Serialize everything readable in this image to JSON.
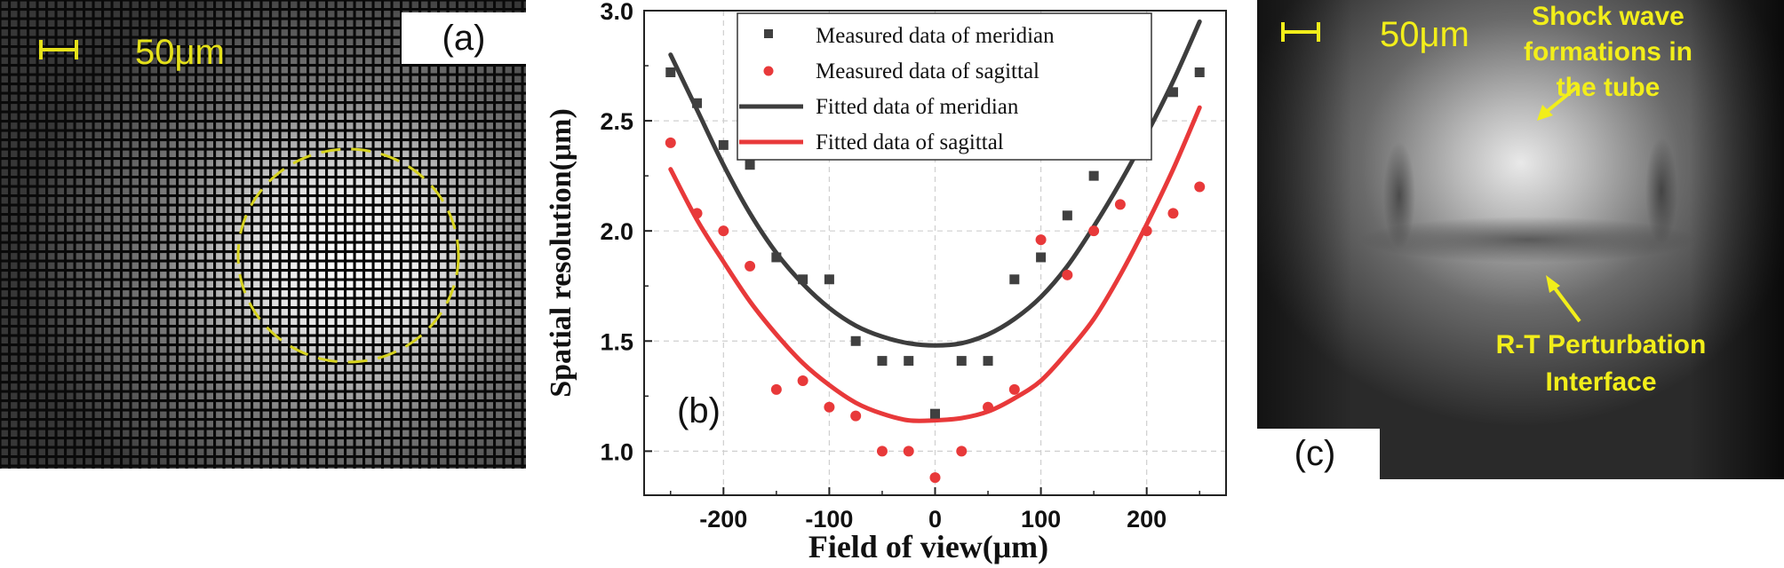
{
  "panel_a": {
    "label": "(a)",
    "scale_text": "50μm",
    "accent": "#e6e21a"
  },
  "panel_c": {
    "label": "(c)",
    "scale_text": "50μm",
    "annotation_top": [
      "Shock wave",
      "formations in",
      "the tube"
    ],
    "annotation_bottom": [
      "R-T Perturbation",
      "Interface"
    ],
    "accent": "#f2ee1a"
  },
  "chart_data": {
    "type": "scatter",
    "panel_label": "(b)",
    "xlabel": "Field of view(μm)",
    "ylabel": "Spatial resolution(μm)",
    "xlim": [
      -275,
      275
    ],
    "ylim": [
      0.8,
      3.0
    ],
    "xticks": [
      -200,
      -100,
      0,
      100,
      200
    ],
    "yticks": [
      1.0,
      1.5,
      2.0,
      2.5,
      3.0
    ],
    "xtick_labels": [
      "-200",
      "-100",
      "0",
      "100",
      "200"
    ],
    "ytick_labels": [
      "1.0",
      "1.5",
      "2.0",
      "2.5",
      "3.0"
    ],
    "grid": true,
    "legend_position": "top",
    "series": [
      {
        "name": "Measured data of meridian",
        "kind": "points",
        "marker": "square",
        "color": "#404040",
        "x": [
          -250,
          -225,
          -200,
          -175,
          -150,
          -125,
          -100,
          -75,
          -50,
          -25,
          0,
          25,
          50,
          75,
          100,
          125,
          150,
          175,
          200,
          225,
          250
        ],
        "y": [
          2.72,
          2.58,
          2.39,
          2.3,
          1.88,
          1.78,
          1.78,
          1.5,
          1.41,
          1.41,
          1.17,
          1.41,
          1.41,
          1.78,
          1.88,
          2.07,
          2.25,
          2.35,
          2.39,
          2.63,
          2.72
        ]
      },
      {
        "name": "Measured data of sagittal",
        "kind": "points",
        "marker": "circle",
        "color": "#e8393a",
        "x": [
          -250,
          -225,
          -200,
          -175,
          -150,
          -125,
          -100,
          -75,
          -50,
          -25,
          0,
          25,
          50,
          75,
          100,
          125,
          150,
          175,
          200,
          225,
          250
        ],
        "y": [
          2.4,
          2.08,
          2.0,
          1.84,
          1.28,
          1.32,
          1.2,
          1.16,
          1.0,
          1.0,
          0.88,
          1.0,
          1.2,
          1.28,
          1.96,
          1.8,
          2.0,
          2.12,
          2.0,
          2.08,
          2.2
        ]
      },
      {
        "name": "Fitted data of meridian",
        "kind": "line",
        "color": "#3d3d3d",
        "x": [
          -250,
          -225,
          -200,
          -175,
          -150,
          -125,
          -100,
          -75,
          -50,
          -25,
          0,
          25,
          50,
          75,
          100,
          125,
          150,
          175,
          200,
          225,
          250
        ],
        "y": [
          2.8,
          2.55,
          2.3,
          2.08,
          1.9,
          1.76,
          1.65,
          1.57,
          1.52,
          1.49,
          1.48,
          1.49,
          1.53,
          1.6,
          1.7,
          1.84,
          2.02,
          2.22,
          2.44,
          2.68,
          2.95
        ]
      },
      {
        "name": "Fitted data of sagittal",
        "kind": "line",
        "color": "#e8393a",
        "x": [
          -250,
          -225,
          -200,
          -175,
          -150,
          -125,
          -100,
          -75,
          -50,
          -25,
          0,
          25,
          50,
          75,
          100,
          125,
          150,
          175,
          200,
          225,
          250
        ],
        "y": [
          2.28,
          2.05,
          1.86,
          1.68,
          1.53,
          1.4,
          1.3,
          1.22,
          1.17,
          1.14,
          1.14,
          1.15,
          1.18,
          1.24,
          1.32,
          1.45,
          1.6,
          1.8,
          2.03,
          2.28,
          2.56
        ]
      }
    ]
  }
}
